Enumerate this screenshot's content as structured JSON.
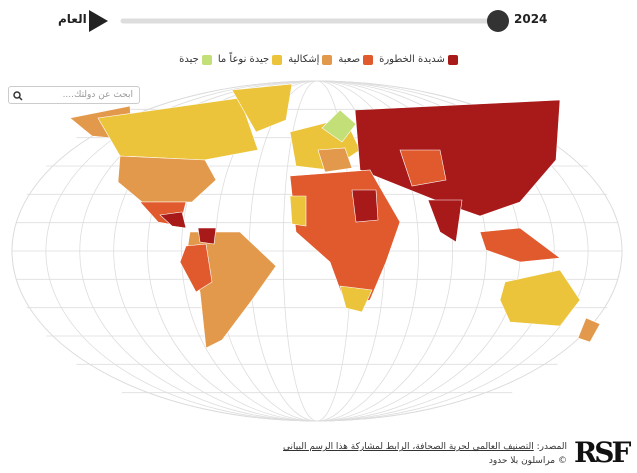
{
  "timeline": {
    "label": "العام",
    "year": "2024"
  },
  "legend": [
    {
      "label": "شديدة الخطورة",
      "color": "#a8191a"
    },
    {
      "label": "صعبة",
      "color": "#e05a2e"
    },
    {
      "label": "إشكالية",
      "color": "#e3994b"
    },
    {
      "label": "جيدة نوعاً ما",
      "color": "#ecc43c"
    },
    {
      "label": "جيدة",
      "color": "#c3df78"
    }
  ],
  "search": {
    "placeholder": "ابحث عن دولتك...."
  },
  "footer": {
    "source_label": "المصدر:",
    "source_link": "التصنيف العالمي لحرية الصحافة، الرابط لمشاركة هذا الرسم البياني",
    "copyright": "© مراسلون بلا حدود"
  },
  "logo": "RSF"
}
